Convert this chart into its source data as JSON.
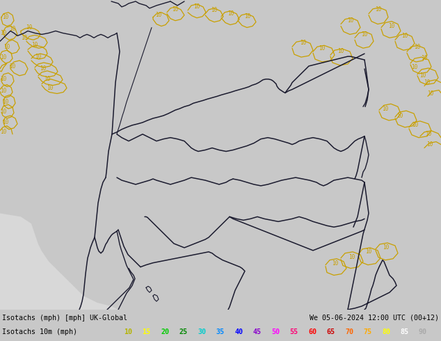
{
  "title_left": "Isotachs (mph) [mph] UK-Global",
  "title_right": "We 05-06-2024 12:00 UTC (00+12)",
  "legend_label": "Isotachs 10m (mph)",
  "legend_values": [
    "10",
    "15",
    "20",
    "25",
    "30",
    "35",
    "40",
    "45",
    "50",
    "55",
    "60",
    "65",
    "70",
    "75",
    "80",
    "85",
    "90"
  ],
  "map_bg": "#c8ff96",
  "sea_color": "#d8d8d8",
  "contour_color": "#c8a000",
  "border_color": "#1a1a2e",
  "bottom_bar_color": "#c8c8c8",
  "fig_width": 6.34,
  "fig_height": 4.9,
  "dpi": 100,
  "legend_colors": [
    "#b4b400",
    "#ffff00",
    "#00cc00",
    "#008800",
    "#00cccc",
    "#0088ff",
    "#0000ff",
    "#8800cc",
    "#ff00ff",
    "#ff0077",
    "#ff0000",
    "#cc0000",
    "#ff6600",
    "#ffaa00",
    "#ffff00",
    "#ffffff",
    "#aaaaaa"
  ]
}
